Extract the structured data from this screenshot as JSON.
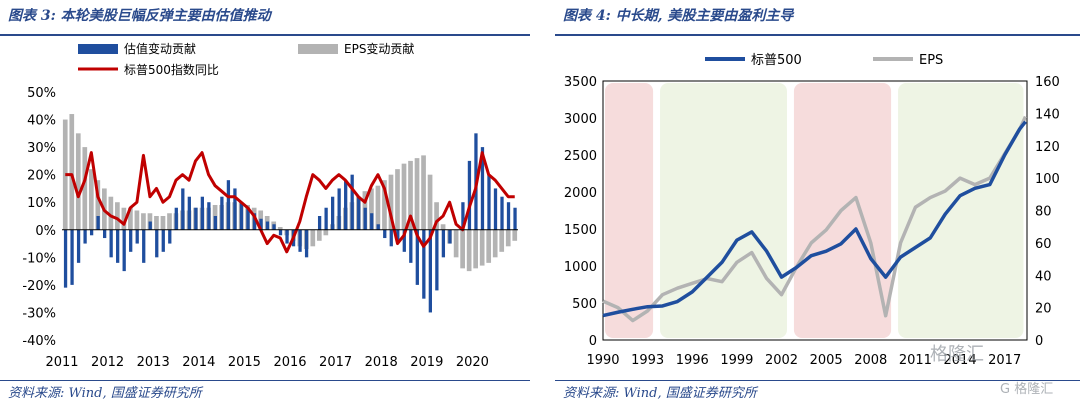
{
  "left": {
    "title": "图表 3:  本轮美股巨幅反弹主要由估值推动",
    "source": "资料来源:  Wind,  国盛证券研究所",
    "legend": [
      "估值变动贡献",
      "EPS变动贡献",
      "标普500指数同比"
    ]
  },
  "right": {
    "title": "图表 4:  中长期,  美股主要由盈利主导",
    "source": "资料来源:  Wind,  国盛证券研究所",
    "legend": [
      "标普500",
      "EPS"
    ]
  },
  "watermark": {
    "text1": "格隆汇",
    "text2": "G 格隆汇"
  },
  "colors": {
    "blue": "#1f4e9e",
    "gray": "#b3b3b3",
    "red": "#c00000",
    "pink": "#f6dcdc",
    "green": "#eef4e4",
    "title": "#2a4a8c"
  },
  "chart_data": [
    {
      "type": "bar",
      "ylim": [
        -40,
        50
      ],
      "yticks": [
        "50%",
        "40%",
        "30%",
        "20%",
        "10%",
        "0%",
        "-10%",
        "-20%",
        "-30%",
        "-40%"
      ],
      "xticks": [
        "2011",
        "2012",
        "2013",
        "2014",
        "2015",
        "2016",
        "2017",
        "2018",
        "2019",
        "2020"
      ],
      "x_start": 2011.0,
      "x_end": 2021.0,
      "series": [
        {
          "name": "估值变动贡献",
          "kind": "bar",
          "values": [
            -21,
            -20,
            -12,
            -5,
            -2,
            5,
            -3,
            -10,
            -12,
            -15,
            -8,
            -5,
            -12,
            3,
            -10,
            -8,
            -5,
            8,
            15,
            12,
            8,
            12,
            10,
            5,
            12,
            18,
            15,
            10,
            8,
            6,
            4,
            3,
            2,
            -2,
            -5,
            -6,
            -8,
            -10,
            0,
            5,
            8,
            12,
            15,
            18,
            20,
            12,
            8,
            6,
            2,
            -3,
            -6,
            -5,
            -8,
            -12,
            -20,
            -25,
            -30,
            -22,
            -10,
            -5,
            0,
            10,
            25,
            35,
            30,
            20,
            15,
            12,
            10,
            8
          ]
        },
        {
          "name": "EPS变动贡献",
          "kind": "bar",
          "values": [
            40,
            42,
            35,
            30,
            22,
            18,
            15,
            12,
            10,
            8,
            8,
            7,
            6,
            6,
            5,
            5,
            6,
            6,
            7,
            7,
            8,
            8,
            8,
            9,
            9,
            10,
            10,
            10,
            9,
            8,
            7,
            5,
            3,
            1,
            -2,
            -4,
            -6,
            -7,
            -6,
            -4,
            -2,
            2,
            5,
            8,
            10,
            12,
            14,
            15,
            16,
            18,
            20,
            22,
            24,
            25,
            26,
            27,
            20,
            10,
            2,
            -5,
            -10,
            -14,
            -15,
            -14,
            -13,
            -12,
            -10,
            -8,
            -6,
            -4
          ]
        },
        {
          "name": "标普500指数同比",
          "kind": "line",
          "values": [
            20,
            20,
            12,
            18,
            28,
            12,
            7,
            5,
            4,
            2,
            8,
            10,
            27,
            12,
            15,
            10,
            12,
            18,
            20,
            18,
            25,
            28,
            20,
            16,
            14,
            12,
            12,
            10,
            8,
            5,
            0,
            -5,
            -2,
            -3,
            -8,
            -3,
            3,
            12,
            20,
            18,
            15,
            18,
            20,
            18,
            15,
            12,
            10,
            16,
            20,
            15,
            5,
            -5,
            -2,
            5,
            -2,
            -6,
            -3,
            3,
            5,
            10,
            2,
            0,
            8,
            15,
            28,
            20,
            18,
            15,
            12,
            12
          ]
        }
      ]
    },
    {
      "type": "line",
      "xticks": [
        "1990",
        "1993",
        "1996",
        "1999",
        "2002",
        "2005",
        "2008",
        "2011",
        "2014",
        "2017"
      ],
      "x_start": 1990.0,
      "x_end": 2018.5,
      "ylim_left": [
        0,
        3500
      ],
      "ylim_right": [
        0,
        160
      ],
      "yticks_left": [
        "0",
        "500",
        "1000",
        "1500",
        "2000",
        "2500",
        "3000",
        "3500"
      ],
      "yticks_right": [
        "0",
        "20",
        "40",
        "60",
        "80",
        "100",
        "120",
        "140",
        "160"
      ],
      "shaded": [
        [
          1990.0,
          1993.5,
          "pink"
        ],
        [
          1993.7,
          2002.5,
          "green"
        ],
        [
          2002.7,
          2009.5,
          "pink"
        ],
        [
          2009.7,
          2018.4,
          "green"
        ]
      ],
      "series": [
        {
          "name": "标普500",
          "axis": "left",
          "points": [
            [
              1990,
              330
            ],
            [
              1991,
              375
            ],
            [
              1992,
              415
            ],
            [
              1993,
              450
            ],
            [
              1994,
              460
            ],
            [
              1995,
              520
            ],
            [
              1996,
              650
            ],
            [
              1997,
              850
            ],
            [
              1998,
              1050
            ],
            [
              1999,
              1350
            ],
            [
              2000,
              1460
            ],
            [
              2001,
              1200
            ],
            [
              2002,
              850
            ],
            [
              2003,
              980
            ],
            [
              2004,
              1140
            ],
            [
              2005,
              1200
            ],
            [
              2006,
              1300
            ],
            [
              2007,
              1500
            ],
            [
              2008,
              1100
            ],
            [
              2009,
              850
            ],
            [
              2010,
              1120
            ],
            [
              2011,
              1250
            ],
            [
              2012,
              1380
            ],
            [
              2013,
              1700
            ],
            [
              2014,
              1950
            ],
            [
              2015,
              2050
            ],
            [
              2016,
              2100
            ],
            [
              2017,
              2500
            ],
            [
              2018,
              2850
            ],
            [
              2018.4,
              2950
            ]
          ]
        },
        {
          "name": "EPS",
          "axis": "right",
          "points": [
            [
              1990,
              24
            ],
            [
              1991,
              20
            ],
            [
              1992,
              12
            ],
            [
              1993,
              18
            ],
            [
              1994,
              28
            ],
            [
              1995,
              32
            ],
            [
              1996,
              35
            ],
            [
              1997,
              38
            ],
            [
              1998,
              36
            ],
            [
              1999,
              48
            ],
            [
              2000,
              54
            ],
            [
              2001,
              38
            ],
            [
              2002,
              28
            ],
            [
              2003,
              45
            ],
            [
              2004,
              60
            ],
            [
              2005,
              68
            ],
            [
              2006,
              80
            ],
            [
              2007,
              88
            ],
            [
              2008,
              60
            ],
            [
              2009,
              15
            ],
            [
              2010,
              60
            ],
            [
              2011,
              82
            ],
            [
              2012,
              88
            ],
            [
              2013,
              92
            ],
            [
              2014,
              100
            ],
            [
              2015,
              96
            ],
            [
              2016,
              100
            ],
            [
              2017,
              115
            ],
            [
              2018,
              130
            ],
            [
              2018.4,
              138
            ]
          ]
        }
      ]
    }
  ]
}
